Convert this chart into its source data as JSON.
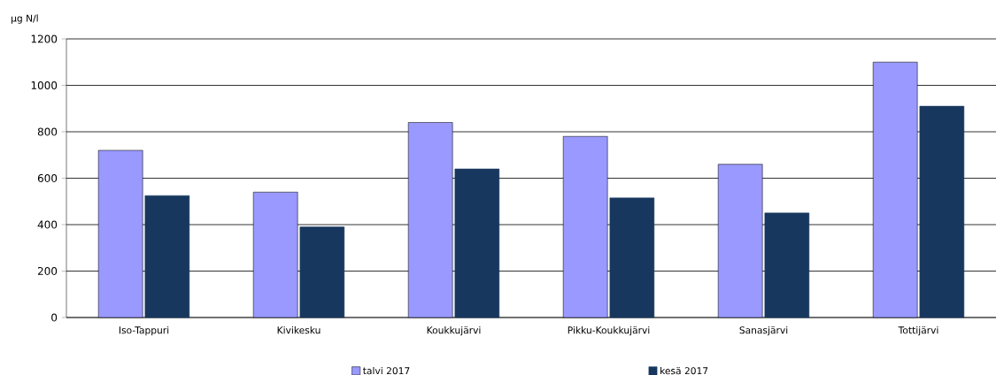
{
  "chart_data": {
    "type": "bar",
    "ylabel": "µg N/l",
    "categories": [
      "Iso-Tappuri",
      "Kivikesku",
      "Koukkujärvi",
      "Pikku-Koukkujärvi",
      "Sanasjärvi",
      "Tottijärvi"
    ],
    "series": [
      {
        "name": "talvi 2017",
        "color": "#9999ff",
        "values": [
          720,
          540,
          840,
          780,
          660,
          1100
        ]
      },
      {
        "name": "kesä 2017",
        "color": "#17375e",
        "values": [
          525,
          390,
          640,
          515,
          450,
          910
        ]
      }
    ],
    "ylim": [
      0,
      1200
    ],
    "yticks": [
      0,
      200,
      400,
      600,
      800,
      1000,
      1200
    ],
    "grid": "y",
    "legend": "bottom"
  }
}
